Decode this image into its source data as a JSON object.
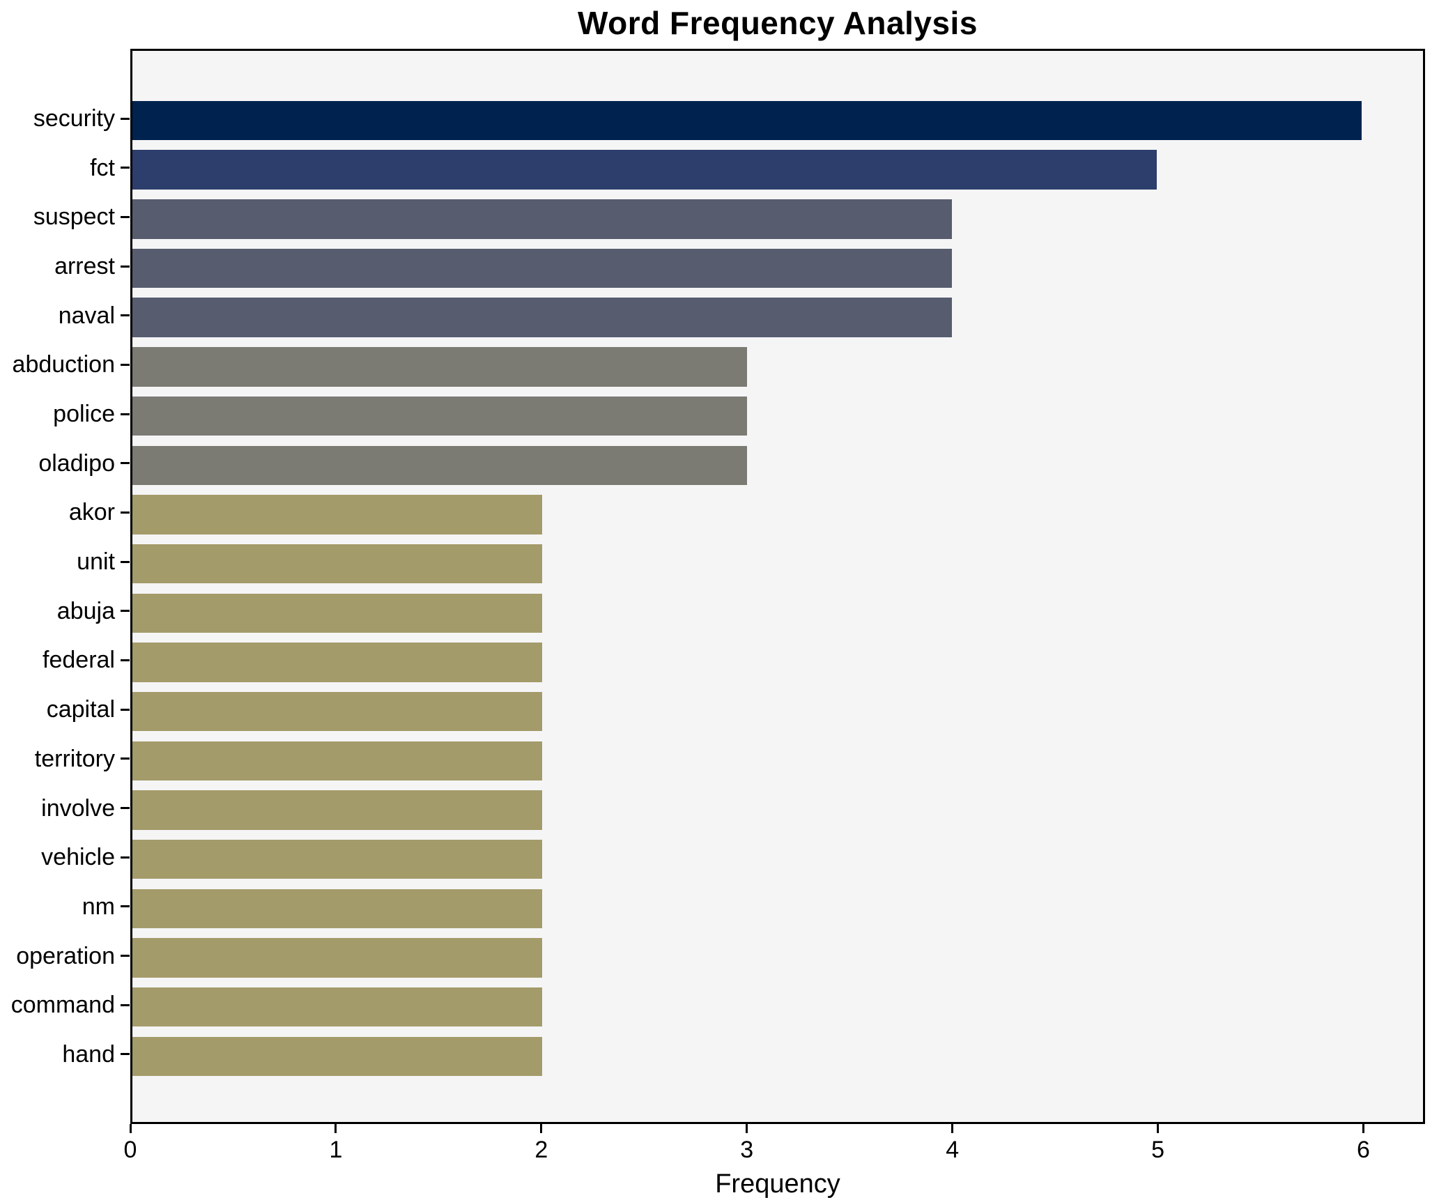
{
  "figure": {
    "background_color": "#ffffff",
    "plot_background_color": "#f5f5f6",
    "frame_color": "#000000"
  },
  "chart_data": {
    "type": "bar",
    "orientation": "horizontal",
    "title": "Word Frequency Analysis",
    "xlabel": "Frequency",
    "ylabel": "",
    "xlim": [
      0,
      6.3
    ],
    "xticks": [
      0,
      1,
      2,
      3,
      4,
      5,
      6
    ],
    "grid": false,
    "legend": false,
    "categories": [
      "security",
      "fct",
      "suspect",
      "arrest",
      "naval",
      "abduction",
      "police",
      "oladipo",
      "akor",
      "unit",
      "abuja",
      "federal",
      "capital",
      "territory",
      "involve",
      "vehicle",
      "nm",
      "operation",
      "command",
      "hand"
    ],
    "values": [
      6,
      5,
      4,
      4,
      4,
      3,
      3,
      3,
      2,
      2,
      2,
      2,
      2,
      2,
      2,
      2,
      2,
      2,
      2,
      2
    ],
    "bar_colors": [
      "#00224e",
      "#2d3e6c",
      "#575d6f",
      "#575d6f",
      "#575d6f",
      "#7b7a73",
      "#7b7a73",
      "#7b7a73",
      "#a49b6b",
      "#a49b6b",
      "#a49b6b",
      "#a49b6b",
      "#a49b6b",
      "#a49b6b",
      "#a49b6b",
      "#a49b6b",
      "#a49b6b",
      "#a49b6b",
      "#a49b6b",
      "#a49b6b"
    ]
  }
}
